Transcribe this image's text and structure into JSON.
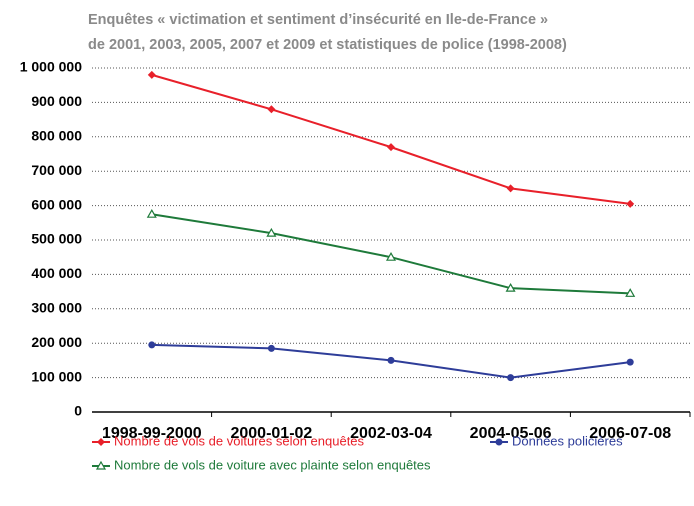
{
  "chart_data": {
    "type": "line",
    "subtitle": [
      "Enquêtes « victimation et sentiment d’insécurité en Ile-de-France »",
      "de 2001, 2003, 2005, 2007 et 2009 et statistiques de police (1998-2008)"
    ],
    "categories": [
      "1998-99-2000",
      "2000-01-02",
      "2002-03-04",
      "2004-05-06",
      "2006-07-08"
    ],
    "series": [
      {
        "name": "Nombre de vols de voitures selon enquêtes",
        "color": "#e8202a",
        "marker": "diamond",
        "values": [
          980000,
          880000,
          770000,
          650000,
          605000
        ]
      },
      {
        "name": "Nombre de vols de voiture avec plainte selon enquêtes",
        "color": "#1e7a3a",
        "marker": "triangle",
        "values": [
          575000,
          520000,
          450000,
          360000,
          345000
        ]
      },
      {
        "name": "Données policières",
        "color": "#2e3d99",
        "marker": "circle",
        "values": [
          195000,
          185000,
          150000,
          100000,
          145000
        ]
      }
    ],
    "ylim": [
      0,
      1000000
    ],
    "yticks": [
      0,
      {
        "value": 100000,
        "label": "100 000"
      },
      {
        "value": 200000,
        "label": "200 000"
      },
      {
        "value": 300000,
        "label": "300 000"
      },
      {
        "value": 400000,
        "label": "400 000"
      },
      {
        "value": 500000,
        "label": "500 000"
      },
      {
        "value": 600000,
        "label": "600 000"
      },
      {
        "value": 700000,
        "label": "700 000"
      },
      {
        "value": 800000,
        "label": "800 000"
      },
      {
        "value": 900000,
        "label": "900 000"
      },
      {
        "value": 1000000,
        "label": "1 000 000"
      }
    ],
    "grid": true
  }
}
